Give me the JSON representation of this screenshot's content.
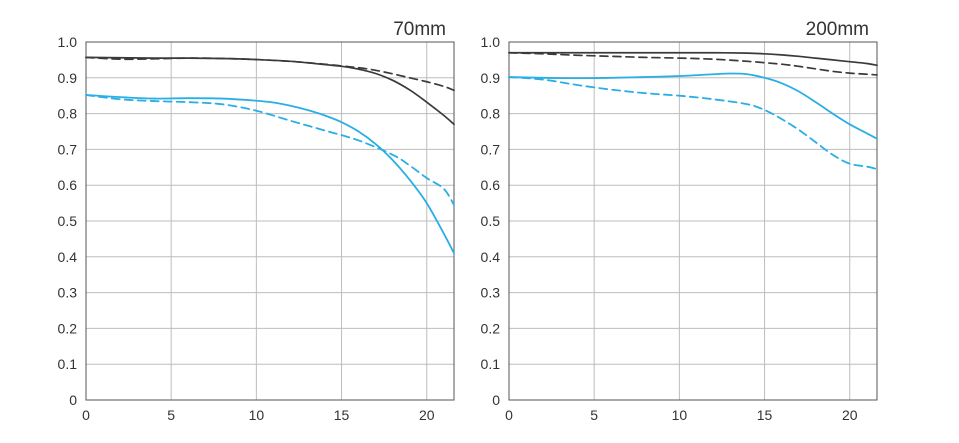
{
  "figure": {
    "colors": {
      "black": "#3a3a3a",
      "blue": "#29aee5",
      "grid": "#bdbdbd",
      "axis": "#555555"
    }
  },
  "chart_data": [
    {
      "type": "line",
      "title": "70mm",
      "xlim": [
        0,
        21.6
      ],
      "ylim": [
        0,
        1.0
      ],
      "xticks": [
        0,
        5,
        10,
        15,
        20
      ],
      "xtick_labels": [
        "0",
        "5",
        "10",
        "15",
        "20"
      ],
      "yticks": [
        0,
        0.1,
        0.2,
        0.3,
        0.4,
        0.5,
        0.6,
        0.7,
        0.8,
        0.9,
        1.0
      ],
      "ytick_labels": [
        "0",
        "0.1",
        "0.2",
        "0.3",
        "0.4",
        "0.5",
        "0.6",
        "0.7",
        "0.8",
        "0.9",
        "1.0"
      ],
      "grid": true,
      "series": [
        {
          "color": "black",
          "dash": false,
          "x": [
            0,
            2,
            4,
            6,
            8,
            10,
            12,
            14,
            15,
            16,
            17,
            18,
            19,
            20,
            21,
            21.6
          ],
          "y": [
            0.957,
            0.956,
            0.955,
            0.955,
            0.954,
            0.951,
            0.946,
            0.937,
            0.932,
            0.924,
            0.912,
            0.893,
            0.866,
            0.832,
            0.795,
            0.77
          ]
        },
        {
          "color": "black",
          "dash": true,
          "x": [
            0,
            2,
            4,
            6,
            8,
            10,
            12,
            14,
            16,
            17,
            18,
            19,
            20,
            21,
            21.6
          ],
          "y": [
            0.957,
            0.952,
            0.953,
            0.955,
            0.954,
            0.951,
            0.946,
            0.938,
            0.928,
            0.921,
            0.911,
            0.9,
            0.889,
            0.876,
            0.865
          ]
        },
        {
          "color": "blue",
          "dash": false,
          "x": [
            0,
            2,
            4,
            6,
            8,
            10,
            11,
            12,
            13,
            14,
            15,
            16,
            17,
            18,
            19,
            20,
            21,
            21.6
          ],
          "y": [
            0.852,
            0.846,
            0.842,
            0.843,
            0.842,
            0.836,
            0.831,
            0.822,
            0.81,
            0.795,
            0.776,
            0.75,
            0.715,
            0.67,
            0.615,
            0.55,
            0.465,
            0.41
          ]
        },
        {
          "color": "blue",
          "dash": true,
          "x": [
            0,
            2,
            4,
            6,
            8,
            10,
            12,
            14,
            16,
            18,
            19,
            20,
            21,
            21.6
          ],
          "y": [
            0.852,
            0.84,
            0.835,
            0.832,
            0.826,
            0.808,
            0.78,
            0.753,
            0.725,
            0.685,
            0.655,
            0.62,
            0.59,
            0.545
          ]
        }
      ]
    },
    {
      "type": "line",
      "title": "200mm",
      "xlim": [
        0,
        21.6
      ],
      "ylim": [
        0,
        1.0
      ],
      "xticks": [
        0,
        5,
        10,
        15,
        20
      ],
      "xtick_labels": [
        "0",
        "5",
        "10",
        "15",
        "20"
      ],
      "yticks": [
        0,
        0.1,
        0.2,
        0.3,
        0.4,
        0.5,
        0.6,
        0.7,
        0.8,
        0.9,
        1.0
      ],
      "ytick_labels": [
        "0",
        "0.1",
        "0.2",
        "0.3",
        "0.4",
        "0.5",
        "0.6",
        "0.7",
        "0.8",
        "0.9",
        "1.0"
      ],
      "grid": true,
      "series": [
        {
          "color": "black",
          "dash": false,
          "x": [
            0,
            2,
            4,
            6,
            8,
            10,
            12,
            14,
            15,
            16,
            17,
            18,
            19,
            20,
            21,
            21.6
          ],
          "y": [
            0.97,
            0.97,
            0.97,
            0.97,
            0.97,
            0.97,
            0.97,
            0.969,
            0.967,
            0.964,
            0.96,
            0.955,
            0.95,
            0.945,
            0.94,
            0.935
          ]
        },
        {
          "color": "black",
          "dash": true,
          "x": [
            0,
            2,
            4,
            6,
            8,
            10,
            12,
            14,
            16,
            17,
            18,
            19,
            20,
            21,
            21.6
          ],
          "y": [
            0.97,
            0.967,
            0.963,
            0.96,
            0.957,
            0.955,
            0.952,
            0.946,
            0.938,
            0.932,
            0.925,
            0.918,
            0.913,
            0.91,
            0.908
          ]
        },
        {
          "color": "blue",
          "dash": false,
          "x": [
            0,
            2,
            4,
            6,
            8,
            10,
            12,
            13,
            14,
            15,
            16,
            17,
            18,
            19,
            20,
            21,
            21.6
          ],
          "y": [
            0.902,
            0.9,
            0.899,
            0.9,
            0.902,
            0.905,
            0.91,
            0.912,
            0.91,
            0.9,
            0.885,
            0.862,
            0.832,
            0.8,
            0.77,
            0.745,
            0.73
          ]
        },
        {
          "color": "blue",
          "dash": true,
          "x": [
            0,
            2,
            4,
            6,
            8,
            10,
            12,
            14,
            15,
            16,
            17,
            18,
            19,
            20,
            21,
            21.6
          ],
          "y": [
            0.902,
            0.895,
            0.88,
            0.867,
            0.857,
            0.85,
            0.84,
            0.826,
            0.81,
            0.785,
            0.755,
            0.72,
            0.685,
            0.66,
            0.652,
            0.645
          ]
        }
      ]
    }
  ]
}
